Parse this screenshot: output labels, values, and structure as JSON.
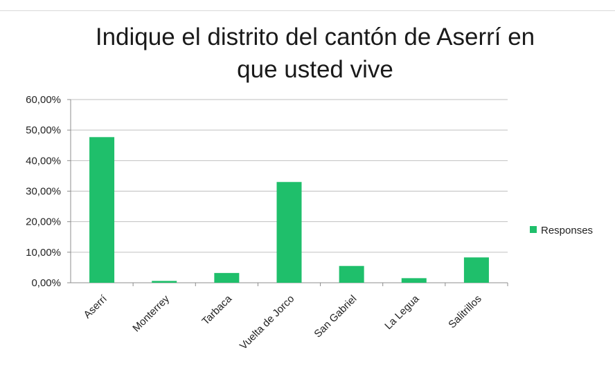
{
  "chart_data": {
    "type": "bar",
    "title_lines": [
      "Indique el distrito del cantón de Aserrí en",
      "que usted vive"
    ],
    "categories": [
      "Aserrí",
      "Monterrey",
      "Tarbaca",
      "Vuelta de Jorco",
      "San Gabriel",
      "La Legua",
      "Salitrillos"
    ],
    "series": [
      {
        "name": "Responses",
        "values": [
          47.7,
          0.6,
          3.2,
          33.0,
          5.5,
          1.5,
          8.3
        ],
        "color": "#1fbf6b"
      }
    ],
    "ylim": [
      0,
      60
    ],
    "ytick_values": [
      0,
      10,
      20,
      30,
      40,
      50,
      60
    ],
    "ytick_labels": [
      "0,00%",
      "10,00%",
      "20,00%",
      "30,00%",
      "40,00%",
      "50,00%",
      "60,00%"
    ],
    "grid": true,
    "legend_position": "right",
    "colors": {
      "gridline": "#bfbfbf",
      "axis": "#8c8c8c"
    }
  }
}
